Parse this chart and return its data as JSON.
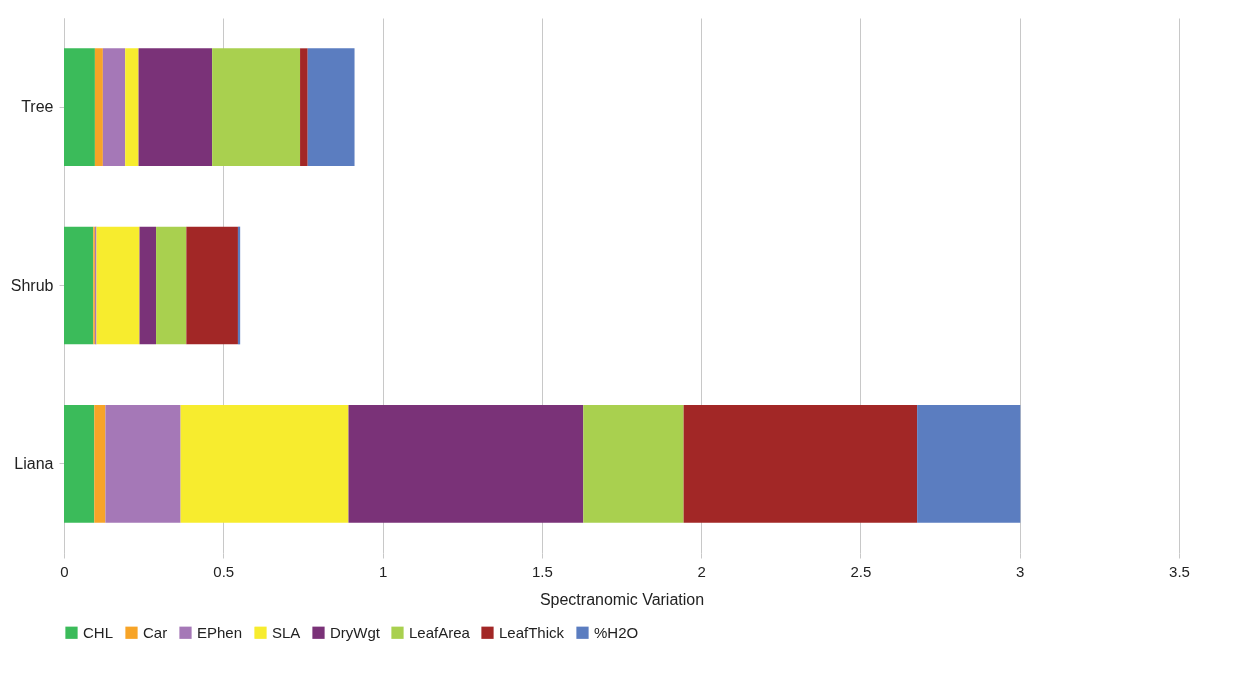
{
  "chart_data": {
    "type": "bar",
    "orientation": "horizontal",
    "stacked": true,
    "xlabel": "Spectranomic Variation",
    "categories": [
      "Tree",
      "Shrub",
      "Liana"
    ],
    "series": [
      {
        "name": "CHL",
        "color": "#3bbb5a",
        "values": [
          0.097,
          0.092,
          0.095
        ]
      },
      {
        "name": "Car",
        "color": "#f7a427",
        "values": [
          0.025,
          0.005,
          0.035
        ]
      },
      {
        "name": "EPhen",
        "color": "#a578b7",
        "values": [
          0.07,
          0.005,
          0.236
        ]
      },
      {
        "name": "SLA",
        "color": "#f7ec2e",
        "values": [
          0.042,
          0.135,
          0.527
        ]
      },
      {
        "name": "DryWgt",
        "color": "#7a3278",
        "values": [
          0.231,
          0.052,
          0.737
        ]
      },
      {
        "name": "LeafArea",
        "color": "#a9d04f",
        "values": [
          0.276,
          0.095,
          0.315
        ]
      },
      {
        "name": "LeafThick",
        "color": "#a22726",
        "values": [
          0.024,
          0.162,
          0.733
        ]
      },
      {
        "name": "%H2O",
        "color": "#5b7dc0",
        "values": [
          0.147,
          0.007,
          0.324
        ]
      }
    ],
    "xlim": [
      0,
      3.5
    ],
    "xticks": [
      0,
      0.5,
      1,
      1.5,
      2,
      2.5,
      3,
      3.5
    ],
    "grid": "x",
    "legend": "bottom"
  }
}
